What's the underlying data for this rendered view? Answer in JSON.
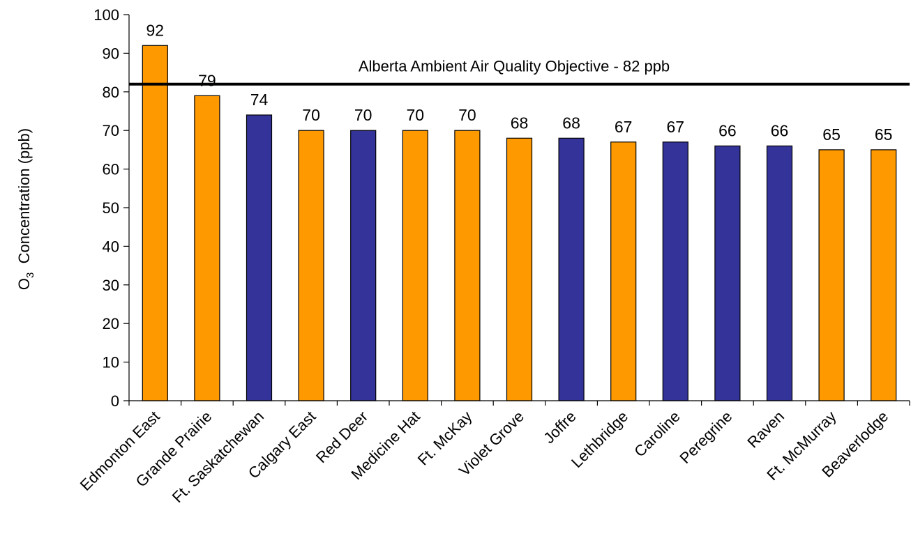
{
  "chart_data": {
    "type": "bar",
    "categories": [
      "Edmonton East",
      "Grande Prairie",
      "Ft. Saskatchewan",
      "Calgary East",
      "Red Deer",
      "Medicine Hat",
      "Ft. McKay",
      "Violet Grove",
      "Joffre",
      "Lethbridge",
      "Caroline",
      "Peregrine",
      "Raven",
      "Ft. McMurray",
      "Beaverlodge"
    ],
    "values": [
      92,
      79,
      74,
      70,
      70,
      70,
      70,
      68,
      68,
      67,
      67,
      66,
      66,
      65,
      65
    ],
    "bar_colors": [
      "#FF9900",
      "#FF9900",
      "#333399",
      "#FF9900",
      "#333399",
      "#FF9900",
      "#FF9900",
      "#FF9900",
      "#333399",
      "#FF9900",
      "#333399",
      "#333399",
      "#333399",
      "#FF9900",
      "#FF9900"
    ],
    "ylabel_main": "O",
    "ylabel_sub": "3",
    "ylabel_rest": "  Concentration (ppb)",
    "ylim": [
      0,
      100
    ],
    "yticks": [
      0,
      10,
      20,
      30,
      40,
      50,
      60,
      70,
      80,
      90,
      100
    ],
    "grid": false,
    "reference_line": {
      "value": 82,
      "label": "Alberta Ambient Air Quality Objective - 82 ppb",
      "color": "#000000"
    },
    "data_labels": true
  }
}
